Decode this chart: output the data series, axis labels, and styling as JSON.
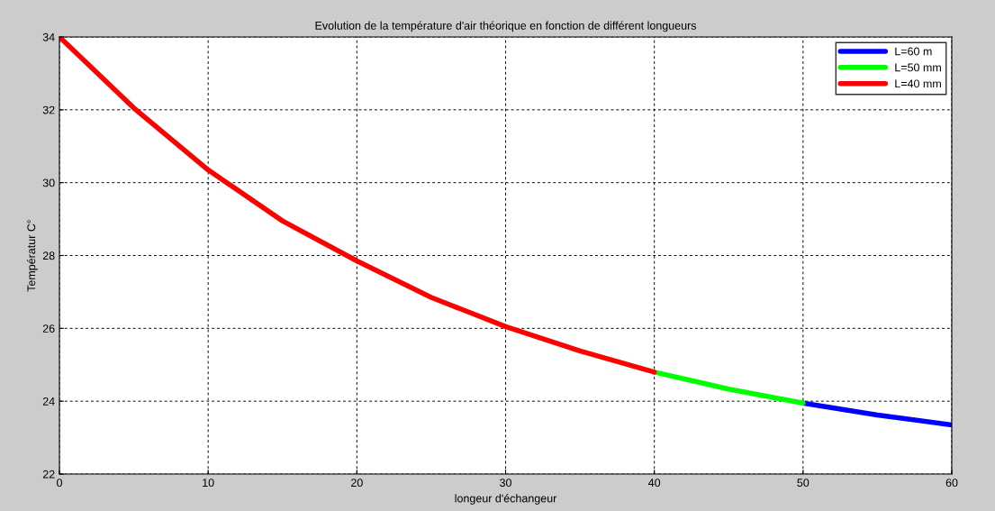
{
  "chart_data": {
    "type": "line",
    "title": "Evolution de la température d'air théorique en fonction de différent longueurs",
    "xlabel": "longeur d'échangeur",
    "ylabel": "Températur C°",
    "series": [
      {
        "name": "L=60 m",
        "color": "#0000ff",
        "x": [
          50,
          55,
          60
        ],
        "values": [
          23.95,
          23.62,
          23.35
        ]
      },
      {
        "name": "L=50 mm",
        "color": "#00ff00",
        "x": [
          40,
          45,
          50
        ],
        "values": [
          24.8,
          24.33,
          23.95
        ]
      },
      {
        "name": "L=40 mm",
        "color": "#ff0000",
        "x": [
          0,
          5,
          10,
          15,
          20,
          25,
          30,
          35,
          40
        ],
        "values": [
          34,
          32.05,
          30.35,
          28.95,
          27.85,
          26.85,
          26.05,
          25.38,
          24.8
        ]
      }
    ],
    "xlim": [
      0,
      60
    ],
    "xticks": [
      0,
      10,
      20,
      30,
      40,
      50,
      60
    ],
    "ylim": [
      22,
      34
    ],
    "yticks": [
      22,
      24,
      26,
      28,
      30,
      32,
      34
    ],
    "grid": true,
    "legend": "top right",
    "line_style": "solid",
    "marker": "none"
  }
}
